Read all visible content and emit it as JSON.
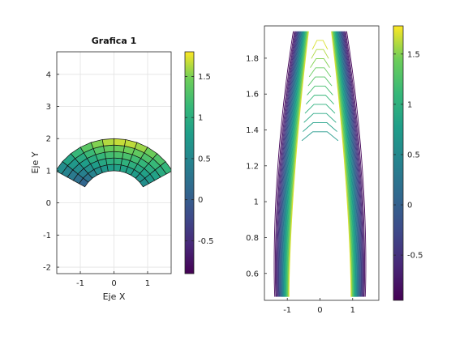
{
  "chart_data": [
    {
      "type": "surface",
      "title": "Grafica 1",
      "xlabel": "Eje X",
      "ylabel": "Eje Y",
      "xlim": [
        -1.7,
        1.7
      ],
      "ylim": [
        -2.2,
        4.7
      ],
      "xticks": [
        -1,
        0,
        1
      ],
      "yticks": [
        -2,
        -1,
        0,
        1,
        2,
        3,
        4
      ],
      "grid": true,
      "surface": {
        "shape": "annular sector (polar grid)",
        "r_range": [
          1,
          2
        ],
        "theta_range_deg": [
          30,
          150
        ],
        "r_steps": 5,
        "theta_steps": 12,
        "color_value_range": [
          -0.9,
          1.7
        ]
      },
      "colorbar": {
        "ticks": [
          -0.5,
          0,
          0.5,
          1,
          1.5
        ],
        "range": [
          -0.9,
          1.8
        ],
        "colormap": "viridis"
      }
    },
    {
      "type": "contour",
      "title": "",
      "xlabel": "",
      "ylabel": "",
      "xlim": [
        -1.7,
        1.8
      ],
      "ylim": [
        0.45,
        1.98
      ],
      "xticks": [
        -1,
        0,
        1
      ],
      "yticks": [
        0.6,
        0.8,
        1,
        1.2,
        1.4,
        1.6,
        1.8
      ],
      "grid": false,
      "contour_levels": [
        -0.9,
        -0.8,
        -0.7,
        -0.6,
        -0.5,
        -0.4,
        -0.3,
        -0.2,
        -0.1,
        0,
        0.1,
        0.2,
        0.3,
        0.4,
        0.5,
        0.6,
        0.7,
        0.8,
        0.9,
        1.0,
        1.1,
        1.2,
        1.3,
        1.4,
        1.5,
        1.6,
        1.7
      ],
      "colorbar": {
        "ticks": [
          -0.5,
          0,
          0.5,
          1,
          1.5
        ],
        "range": [
          -0.95,
          1.78
        ],
        "colormap": "viridis"
      }
    }
  ]
}
